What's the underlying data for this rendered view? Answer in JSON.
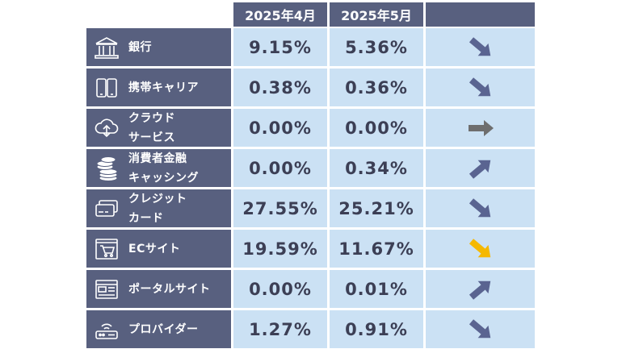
{
  "header": {
    "col1": "2025年4月",
    "col2": "2025年5月",
    "col3": ""
  },
  "rows": [
    {
      "label_lines": [
        "銀行",
        ""
      ],
      "apr": "9.15%",
      "may": "5.36%",
      "icon": "bank-icon",
      "trend": "down",
      "trend_color": "#5a6491"
    },
    {
      "label_lines": [
        "携帯キャリア",
        ""
      ],
      "apr": "0.38%",
      "may": "0.36%",
      "icon": "smartphone-icon",
      "trend": "down",
      "trend_color": "#5a6491"
    },
    {
      "label_lines": [
        "クラウド",
        "サービス"
      ],
      "apr": "0.00%",
      "may": "0.00%",
      "icon": "cloud-icon",
      "trend": "flat",
      "trend_color": "#6e6e6e"
    },
    {
      "label_lines": [
        "消費者金融",
        "キャッシング"
      ],
      "apr": "0.00%",
      "may": "0.34%",
      "icon": "coins-icon",
      "trend": "up",
      "trend_color": "#5a6491"
    },
    {
      "label_lines": [
        "クレジット",
        "カード"
      ],
      "apr": "27.55%",
      "may": "25.21%",
      "icon": "credit-card-icon",
      "trend": "down",
      "trend_color": "#5a6491"
    },
    {
      "label_lines": [
        "ECサイト",
        ""
      ],
      "apr": "19.59%",
      "may": "11.67%",
      "icon": "shopping-cart-icon",
      "trend": "down",
      "trend_color": "#f5b800"
    },
    {
      "label_lines": [
        "ポータルサイト",
        ""
      ],
      "apr": "0.00%",
      "may": "0.01%",
      "icon": "web-portal-icon",
      "trend": "up",
      "trend_color": "#5a6491"
    },
    {
      "label_lines": [
        "プロバイダー",
        ""
      ],
      "apr": "1.27%",
      "may": "0.91%",
      "icon": "router-icon",
      "trend": "down",
      "trend_color": "#5a6491"
    }
  ]
}
